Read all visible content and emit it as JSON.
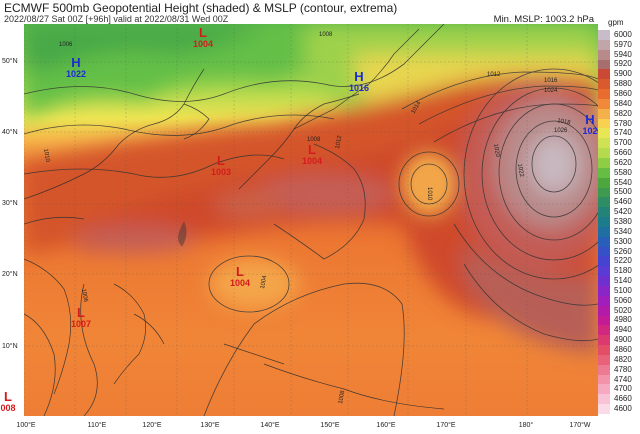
{
  "header": {
    "title": "ECMWF 500mb Geopotential Height (shaded) & MSLP (contour, extrema)",
    "subtitle": "2022/08/27 Sat 00Z [+96h] valid at 2022/08/31 Wed 00Z",
    "min_mslp": "Min. MSLP: 1003.2 hPa"
  },
  "colorbar": {
    "unit": "gpm",
    "labels": [
      "6000",
      "5970",
      "5940",
      "5920",
      "5900",
      "5880",
      "5860",
      "5840",
      "5820",
      "5780",
      "5740",
      "5700",
      "5660",
      "5620",
      "5580",
      "5540",
      "5500",
      "5460",
      "5420",
      "5380",
      "5340",
      "5300",
      "5260",
      "5220",
      "5180",
      "5140",
      "5100",
      "5060",
      "5020",
      "4980",
      "4940",
      "4900",
      "4860",
      "4820",
      "4780",
      "4740",
      "4700",
      "4660",
      "4600"
    ],
    "colors": [
      "#c8bcc8",
      "#c2a5a8",
      "#b98a8a",
      "#a86e6e",
      "#c94935",
      "#d95a2c",
      "#e86c2e",
      "#f08a3a",
      "#f4b04b",
      "#f8d153",
      "#e9e656",
      "#cfe253",
      "#b6da4d",
      "#8fcd45",
      "#67bc43",
      "#4ea63f",
      "#3e9a4e",
      "#2e8d63",
      "#248377",
      "#1c7c8a",
      "#1f6fa3",
      "#285fb8",
      "#3651c8",
      "#4444d1",
      "#5a3bd4",
      "#7030d0",
      "#8a26c8",
      "#a01fbc",
      "#b21aa8",
      "#c31b93",
      "#d0287f",
      "#db3a6e",
      "#e24e66",
      "#e8637a",
      "#ed7a93",
      "#f293aa",
      "#f5aac1",
      "#f8c3d5",
      "#fbdbe8"
    ]
  },
  "axes": {
    "lat_labels": [
      "50°N",
      "40°N",
      "30°N",
      "20°N",
      "10°N"
    ],
    "lon_labels": [
      "100°E",
      "110°E",
      "120°E",
      "130°E",
      "140°E",
      "150°E",
      "160°E",
      "170°E",
      "180°",
      "170°W"
    ]
  },
  "extrema": [
    {
      "type": "L",
      "value": "1004",
      "kind": "low"
    },
    {
      "type": "H",
      "value": "1022",
      "kind": "high"
    },
    {
      "type": "H",
      "value": "1016",
      "kind": "high"
    },
    {
      "type": "H",
      "value": "102",
      "kind": "high"
    },
    {
      "type": "L",
      "value": "1003",
      "kind": "low"
    },
    {
      "type": "L",
      "value": "1004",
      "kind": "low"
    },
    {
      "type": "L",
      "value": "1004",
      "kind": "low"
    },
    {
      "type": "L",
      "value": "1007",
      "kind": "low"
    },
    {
      "type": "L",
      "value": "008",
      "kind": "low"
    }
  ],
  "contour_labels": [
    "1006",
    "1008",
    "1010",
    "1012",
    "1014",
    "1016",
    "1018",
    "1020",
    "1022",
    "1024",
    "1026",
    "1010",
    "1008",
    "1012",
    "1006",
    "1004",
    "1008"
  ]
}
